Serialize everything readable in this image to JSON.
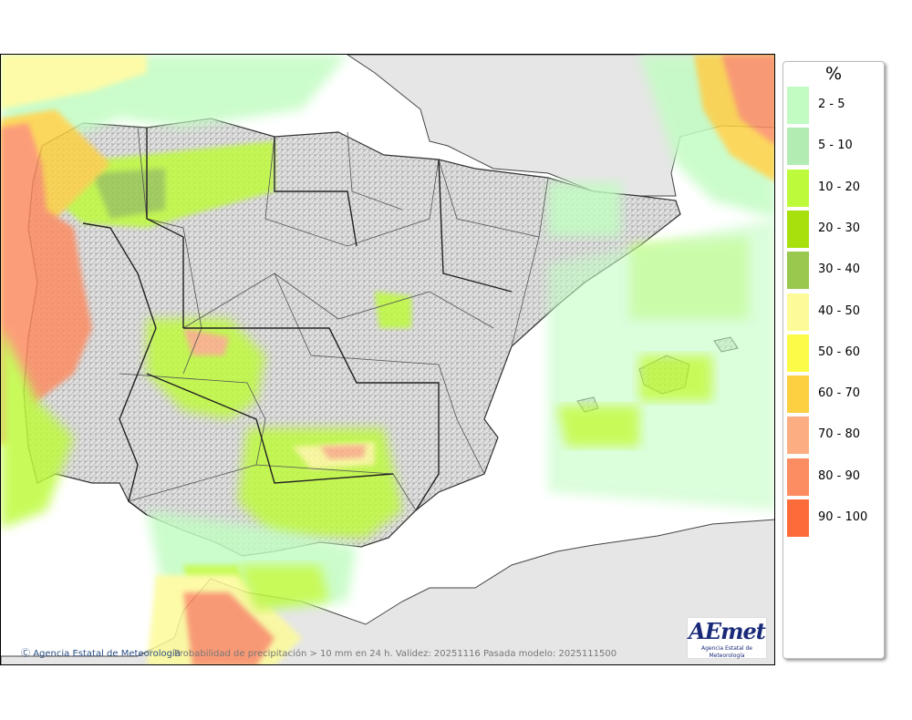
{
  "map": {
    "copyright_text": "Agencia Estatal de Meteorología",
    "caption": "Probabilidad de precipitación > 10 mm en 24 h. Validez: 20251116 Pasada modelo: 2025111500",
    "logo": {
      "wordmark": "AEmet",
      "subtitle": "Agencia Estatal de Meteorología"
    }
  },
  "legend": {
    "title": "%",
    "items": [
      {
        "label": "2 - 5",
        "color": "#c2fcc2"
      },
      {
        "label": "5 - 10",
        "color": "#b2ecb2"
      },
      {
        "label": "10 - 20",
        "color": "#befa3c"
      },
      {
        "label": "20 - 30",
        "color": "#a8e00e"
      },
      {
        "label": "30 - 40",
        "color": "#98c84e"
      },
      {
        "label": "40 - 50",
        "color": "#fdfb98"
      },
      {
        "label": "50 - 60",
        "color": "#fcfc48"
      },
      {
        "label": "60 - 70",
        "color": "#fcd040"
      },
      {
        "label": "70 - 80",
        "color": "#fcae82"
      },
      {
        "label": "80 - 90",
        "color": "#fc8c62"
      },
      {
        "label": "90 - 100",
        "color": "#fc6b3a"
      }
    ]
  }
}
